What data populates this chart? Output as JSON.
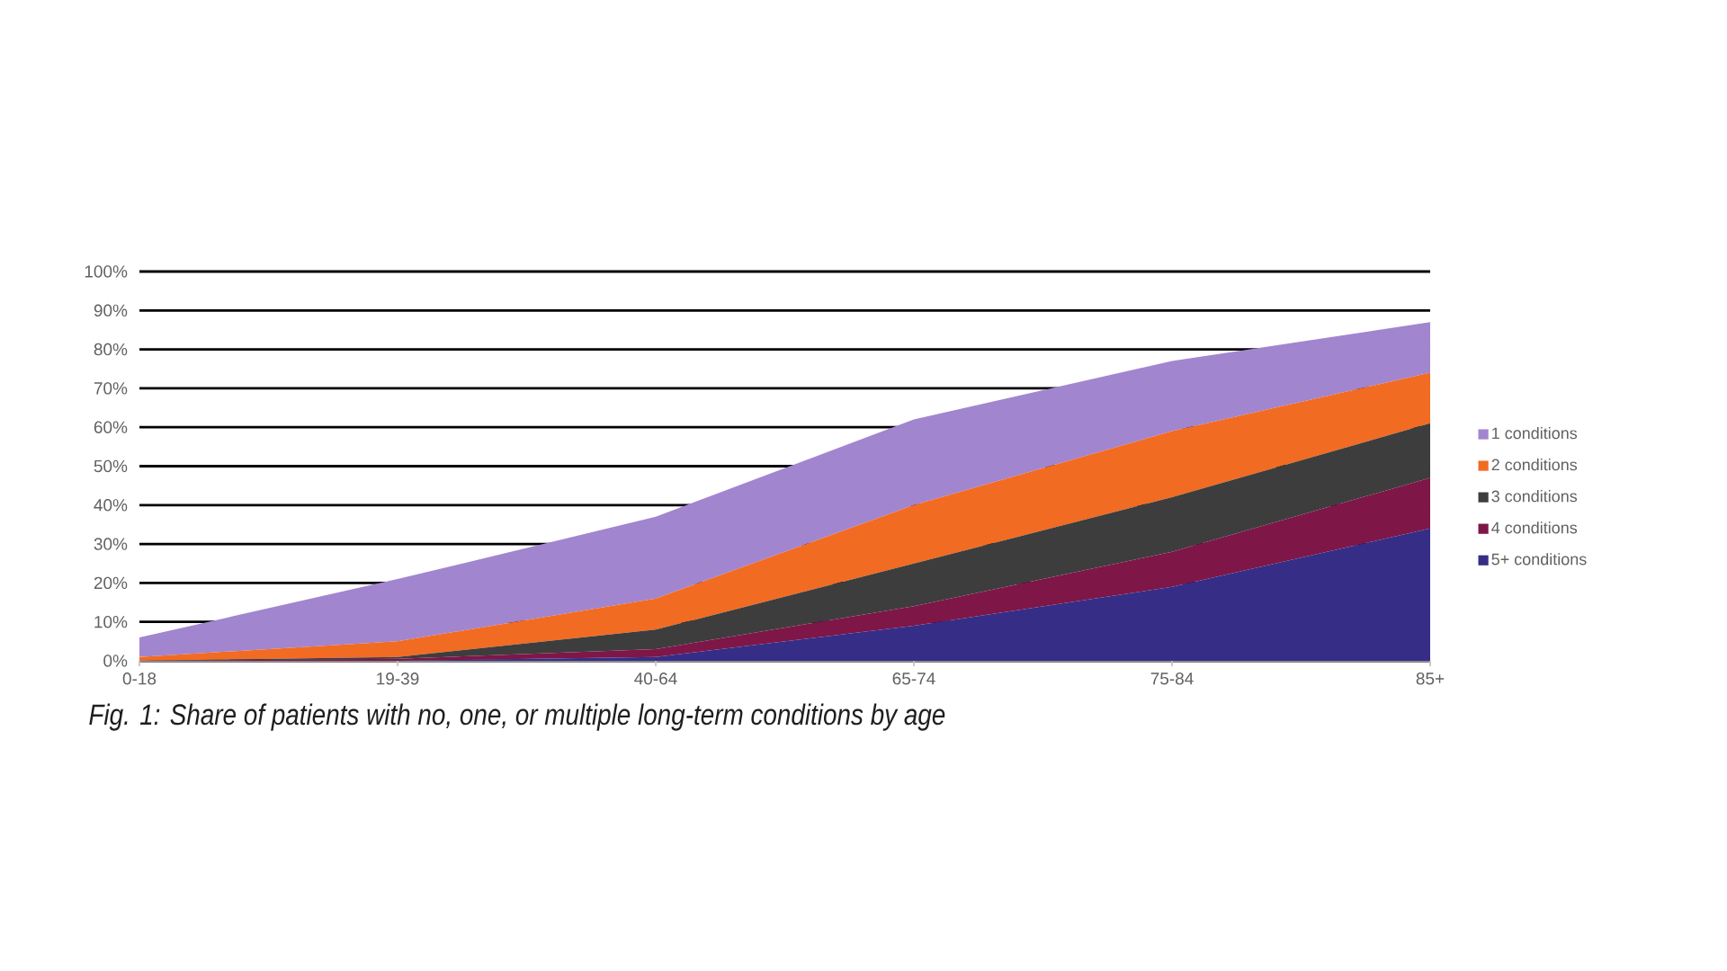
{
  "chart_data": {
    "type": "area",
    "stacked": true,
    "categories": [
      "0-18",
      "19-39",
      "40-64",
      "65-74",
      "75-84",
      "85+"
    ],
    "series": [
      {
        "name": "5+ conditions",
        "color": "#362d87",
        "values": [
          0,
          0,
          1,
          9,
          19,
          34
        ]
      },
      {
        "name": "4 conditions",
        "color": "#7e1648",
        "values": [
          0,
          0.5,
          2,
          5,
          9,
          13
        ]
      },
      {
        "name": "3 conditions",
        "color": "#3d3d3d",
        "values": [
          0,
          0.5,
          5,
          11,
          14,
          14
        ]
      },
      {
        "name": "2 conditions",
        "color": "#f26b23",
        "values": [
          1,
          4,
          8,
          15,
          17,
          13
        ]
      },
      {
        "name": "1 conditions",
        "color": "#a285cf",
        "values": [
          5,
          16,
          21,
          22,
          18,
          13
        ]
      }
    ],
    "ylim": [
      0,
      100
    ],
    "yticks": [
      {
        "value": 0,
        "label": "0%"
      },
      {
        "value": 10,
        "label": "10%"
      },
      {
        "value": 20,
        "label": "20%"
      },
      {
        "value": 30,
        "label": "30%"
      },
      {
        "value": 40,
        "label": "40%"
      },
      {
        "value": 50,
        "label": "50%"
      },
      {
        "value": 60,
        "label": "60%"
      },
      {
        "value": 70,
        "label": "70%"
      },
      {
        "value": 80,
        "label": "80%"
      },
      {
        "value": 90,
        "label": "90%"
      },
      {
        "value": 100,
        "label": "100%"
      }
    ],
    "grid": "y",
    "legend": "right",
    "annotations": [
      "Fig. 1: Share of patients with no, one, or multiple long-term conditions by age"
    ]
  }
}
